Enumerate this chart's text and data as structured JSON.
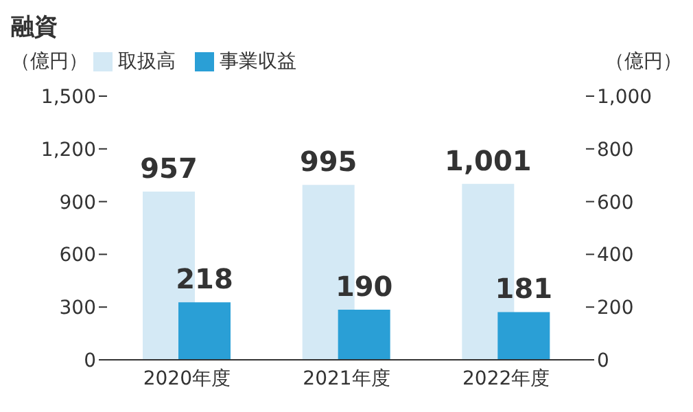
{
  "chart_data": {
    "type": "bar",
    "title": "融資",
    "ylabel": "（億円）",
    "y2label": "（億円）",
    "categories": [
      "2020年度",
      "2021年度",
      "2022年度"
    ],
    "series": [
      {
        "name": "取扱高",
        "color": "#d4e9f5",
        "values": [
          957,
          995,
          1001
        ],
        "value_labels": [
          "957",
          "995",
          "1,001"
        ]
      },
      {
        "name": "事業収益",
        "color": "#2a9fd6",
        "values": [
          218,
          190,
          181
        ],
        "value_labels": [
          "218",
          "190",
          "181"
        ],
        "axis": "y2"
      }
    ],
    "ylim": [
      0,
      1500
    ],
    "yticks": [
      0,
      300,
      600,
      900,
      {
        "value": 1200,
        "label": "1,200"
      },
      {
        "value": 1500,
        "label": "1,500"
      }
    ],
    "y2lim": [
      0,
      1000
    ],
    "y2ticks": [
      0,
      200,
      400,
      600,
      800,
      {
        "value": 1000,
        "label": "1,000"
      }
    ],
    "legend": "top left",
    "grid": false
  }
}
